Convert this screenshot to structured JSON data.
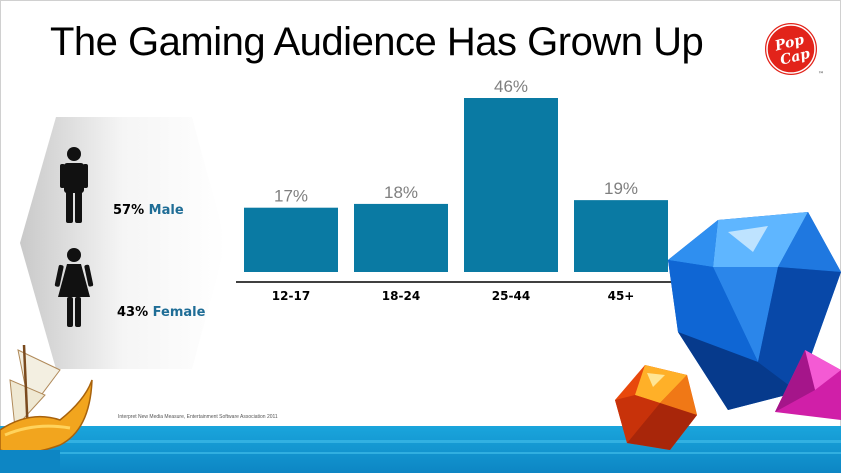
{
  "slide": {
    "title": "The Gaming Audience Has Grown Up",
    "logo_text_1": "Pop",
    "logo_text_2": "Cap",
    "logo_tm": "™",
    "footnote": "Interpret New Media Measure, Entertainment Software Association 2011"
  },
  "gender": {
    "male_pct": "57%",
    "male_label": "Male",
    "female_pct": "43%",
    "female_label": "Female"
  },
  "colors": {
    "bar": "#0a7aa3",
    "value_label": "#7f7f7f",
    "accent_label": "#1f6d96",
    "logo_red": "#e2231a"
  },
  "chart_data": {
    "type": "bar",
    "categories": [
      "12-17",
      "18-24",
      "25-44",
      "45+"
    ],
    "values": [
      17,
      18,
      46,
      19
    ],
    "value_labels": [
      "17%",
      "18%",
      "46%",
      "19%"
    ],
    "title": "",
    "xlabel": "",
    "ylabel": "",
    "ylim": [
      0,
      46
    ],
    "grid": false
  }
}
